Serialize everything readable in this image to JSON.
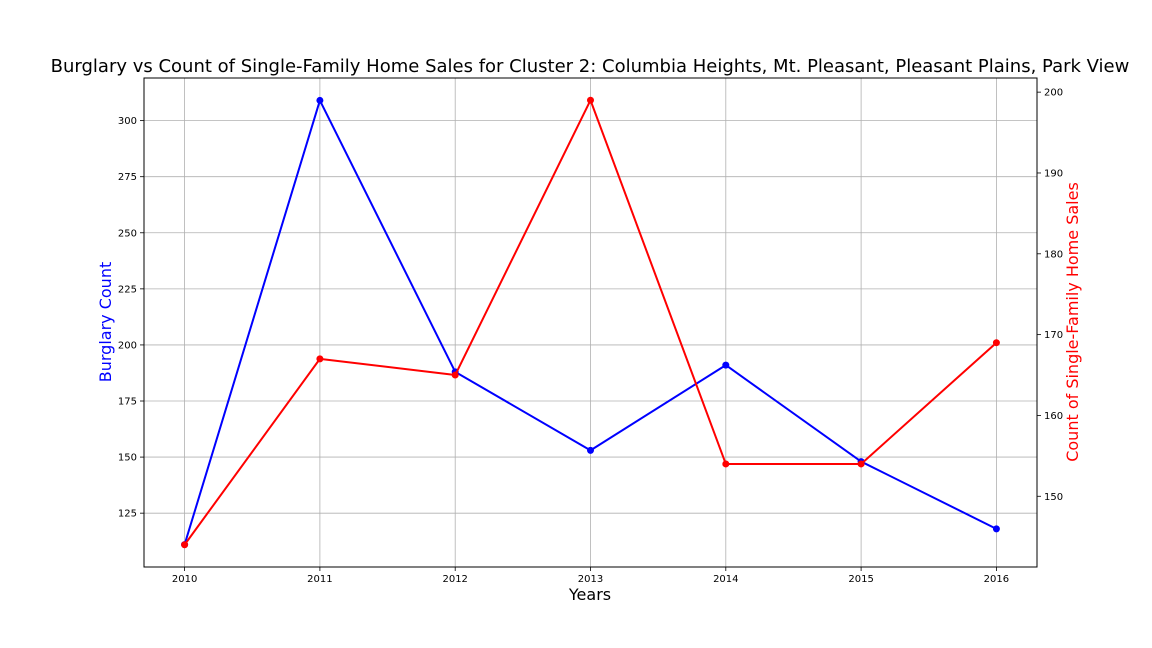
{
  "chart_data": {
    "type": "line",
    "title": "Burglary vs Count of Single-Family Home Sales for Cluster 2: Columbia Heights, Mt. Pleasant, Pleasant Plains, Park View",
    "xlabel": "Years",
    "ylabel_left": "Burglary Count",
    "ylabel_right": "Count of Single-Family Home Sales",
    "x": [
      2010,
      2011,
      2012,
      2013,
      2014,
      2015,
      2016
    ],
    "x_tick_labels": [
      "2010",
      "2011",
      "2012",
      "2013",
      "2014",
      "2015",
      "2016"
    ],
    "xlim": [
      2009.7,
      2016.3
    ],
    "grid": true,
    "series": [
      {
        "name": "Burglary Count",
        "axis": "left",
        "color": "#0000ff",
        "values": [
          111,
          309,
          188,
          153,
          191,
          148,
          118
        ]
      },
      {
        "name": "Count of Single-Family Home Sales",
        "axis": "right",
        "color": "#ff0000",
        "values": [
          144,
          167,
          165,
          199,
          154,
          154,
          169
        ]
      }
    ],
    "left_axis": {
      "ylim": [
        101,
        319
      ],
      "ticks": [
        125,
        150,
        175,
        200,
        225,
        250,
        275,
        300
      ],
      "tick_labels": [
        "125",
        "150",
        "175",
        "200",
        "225",
        "250",
        "275",
        "300"
      ],
      "label_color": "#0000ff"
    },
    "right_axis": {
      "ylim": [
        141.25,
        201.75
      ],
      "ticks": [
        150,
        160,
        170,
        180,
        190,
        200
      ],
      "tick_labels": [
        "150",
        "160",
        "170",
        "180",
        "190",
        "200"
      ],
      "label_color": "#ff0000"
    }
  }
}
